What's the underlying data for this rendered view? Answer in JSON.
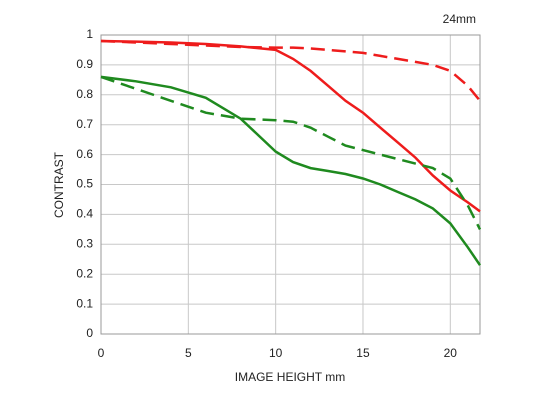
{
  "chart_data": {
    "type": "line",
    "annotation": "24mm",
    "x_label": "IMAGE HEIGHT   mm",
    "y_label": "CONTRAST",
    "x": [
      0,
      2,
      4,
      6,
      8,
      10,
      11,
      12,
      13,
      14,
      15,
      16,
      17,
      18,
      19,
      20,
      21,
      21.7
    ],
    "series": [
      {
        "color": "#ee1c1c",
        "dashed": false,
        "values": [
          0.98,
          0.978,
          0.975,
          0.97,
          0.962,
          0.95,
          0.92,
          0.88,
          0.83,
          0.78,
          0.74,
          0.69,
          0.64,
          0.59,
          0.53,
          0.48,
          0.44,
          0.41
        ]
      },
      {
        "color": "#ee1c1c",
        "dashed": true,
        "values": [
          0.98,
          0.975,
          0.97,
          0.965,
          0.96,
          0.958,
          0.958,
          0.955,
          0.95,
          0.945,
          0.94,
          0.93,
          0.92,
          0.91,
          0.9,
          0.88,
          0.83,
          0.78
        ]
      },
      {
        "color": "#1f8a1f",
        "dashed": false,
        "values": [
          0.86,
          0.845,
          0.825,
          0.79,
          0.72,
          0.61,
          0.575,
          0.555,
          0.545,
          0.535,
          0.52,
          0.5,
          0.475,
          0.45,
          0.42,
          0.37,
          0.29,
          0.23
        ]
      },
      {
        "color": "#1f8a1f",
        "dashed": true,
        "values": [
          0.86,
          0.82,
          0.78,
          0.74,
          0.72,
          0.715,
          0.71,
          0.69,
          0.66,
          0.63,
          0.615,
          0.6,
          0.585,
          0.57,
          0.555,
          0.52,
          0.43,
          0.35
        ]
      }
    ],
    "xlim": [
      0,
      21.7
    ],
    "xticks": [
      0,
      5,
      10,
      15,
      20
    ],
    "ylim": [
      0,
      1
    ],
    "yticks": [
      0,
      0.1,
      0.2,
      0.3,
      0.4,
      0.5,
      0.6,
      0.7,
      0.8,
      0.9,
      1
    ],
    "grid": true
  }
}
